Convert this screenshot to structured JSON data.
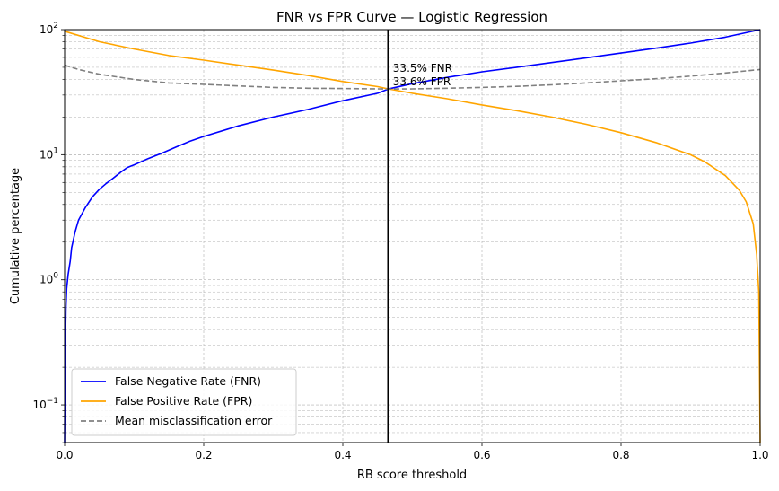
{
  "chart_data": {
    "type": "line",
    "title": "FNR vs FPR Curve — Logistic Regression",
    "xlabel": "RB score threshold",
    "ylabel": "Cumulative percentage",
    "xlim": [
      0,
      1
    ],
    "ylim": [
      0.05,
      100
    ],
    "yscale": "log",
    "grid": true,
    "x_ticks": [
      {
        "v": 0.0,
        "label": "0.0"
      },
      {
        "v": 0.2,
        "label": "0.2"
      },
      {
        "v": 0.4,
        "label": "0.4"
      },
      {
        "v": 0.6,
        "label": "0.6"
      },
      {
        "v": 0.8,
        "label": "0.8"
      },
      {
        "v": 1.0,
        "label": "1.0"
      }
    ],
    "y_ticks": [
      {
        "v": 0.1,
        "base": "10",
        "exp": "−1"
      },
      {
        "v": 1,
        "base": "10",
        "exp": "0"
      },
      {
        "v": 10,
        "base": "10",
        "exp": "1"
      },
      {
        "v": 100,
        "base": "10",
        "exp": "2"
      }
    ],
    "legend_position": "lower-left",
    "series": [
      {
        "name": "False Negative Rate (FNR)",
        "color": "#0000ff",
        "style": "solid",
        "x": [
          0.0,
          0.001,
          0.002,
          0.003,
          0.005,
          0.008,
          0.01,
          0.015,
          0.02,
          0.03,
          0.04,
          0.05,
          0.06,
          0.07,
          0.08,
          0.09,
          0.1,
          0.12,
          0.14,
          0.16,
          0.18,
          0.2,
          0.25,
          0.3,
          0.35,
          0.4,
          0.45,
          0.465,
          0.5,
          0.55,
          0.6,
          0.65,
          0.7,
          0.75,
          0.8,
          0.85,
          0.9,
          0.95,
          1.0
        ],
        "y": [
          0.05,
          0.3,
          0.6,
          0.85,
          1.1,
          1.4,
          1.8,
          2.4,
          3.0,
          3.8,
          4.6,
          5.3,
          5.9,
          6.5,
          7.2,
          7.9,
          8.3,
          9.3,
          10.3,
          11.5,
          12.8,
          14.0,
          17.0,
          20.0,
          23.0,
          27.0,
          31.0,
          33.5,
          37.0,
          41.5,
          46.0,
          50.0,
          54.5,
          59.5,
          65.0,
          71.0,
          78.0,
          87.0,
          100.0
        ]
      },
      {
        "name": "False Positive Rate (FPR)",
        "color": "#ffa500",
        "style": "solid",
        "x": [
          0.0,
          0.05,
          0.1,
          0.15,
          0.2,
          0.25,
          0.3,
          0.35,
          0.4,
          0.45,
          0.465,
          0.5,
          0.55,
          0.6,
          0.65,
          0.7,
          0.75,
          0.8,
          0.85,
          0.9,
          0.92,
          0.95,
          0.97,
          0.98,
          0.99,
          0.995,
          0.998,
          1.0
        ],
        "y": [
          97.0,
          80.0,
          70.0,
          62.0,
          57.0,
          52.0,
          47.5,
          43.0,
          38.5,
          35.0,
          33.6,
          31.0,
          28.0,
          25.0,
          22.5,
          20.0,
          17.5,
          15.0,
          12.5,
          10.0,
          8.8,
          6.8,
          5.2,
          4.2,
          2.8,
          1.6,
          0.8,
          0.05
        ]
      },
      {
        "name": "Mean misclassification error",
        "color": "#808080",
        "style": "dashed",
        "x": [
          0.0,
          0.02,
          0.05,
          0.1,
          0.15,
          0.2,
          0.25,
          0.3,
          0.35,
          0.4,
          0.45,
          0.465,
          0.5,
          0.55,
          0.6,
          0.65,
          0.7,
          0.75,
          0.8,
          0.85,
          0.9,
          0.95,
          1.0
        ],
        "y": [
          52.0,
          48.0,
          44.0,
          40.0,
          37.5,
          36.5,
          35.5,
          34.5,
          34.0,
          33.8,
          33.6,
          33.5,
          33.6,
          34.0,
          34.5,
          35.2,
          36.2,
          37.5,
          39.0,
          40.5,
          42.5,
          45.0,
          48.0
        ]
      }
    ],
    "vline": {
      "x": 0.465,
      "color": "#000000"
    },
    "annotations": [
      {
        "text": "33.5% FNR",
        "x": 0.472,
        "y": 46
      },
      {
        "text": "33.6% FPR",
        "x": 0.472,
        "y": 36
      }
    ]
  }
}
